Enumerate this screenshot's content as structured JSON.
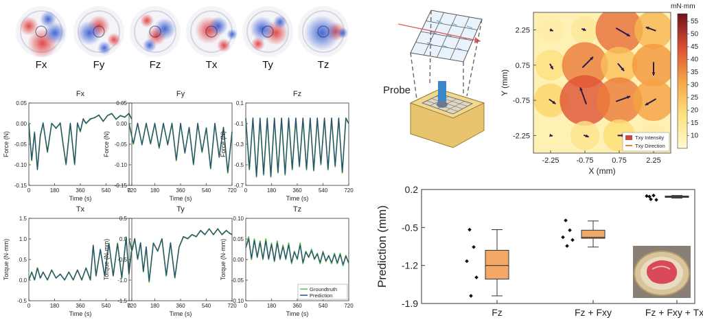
{
  "heatmaps": {
    "labels": [
      "Fx",
      "Fy",
      "Fz",
      "Tx",
      "Ty",
      "Tz"
    ]
  },
  "axis_label_text": {
    "time": "Time (s)",
    "force": "Force (N)",
    "torque": "Torque (N·mm)"
  },
  "legend": {
    "groundtruth": "Groundtruth",
    "prediction": "Prediction"
  },
  "colors": {
    "groundtruth": "#5cbf4a",
    "prediction": "#2c4a7a",
    "box_fill": "#f3a868",
    "heat_red": "#e04040",
    "heat_blue": "#3a5fd0",
    "probe_arrow": "#e05a5a",
    "flow_arrow": "#2c1a4a"
  },
  "schematic": {
    "probe_label": "Probe"
  },
  "chart_data": [
    {
      "type": "line",
      "title": "Fx",
      "xlabel": "Time (s)",
      "ylabel": "Force (N)",
      "xlim": [
        0,
        720
      ],
      "ylim": [
        -0.15,
        0.05
      ],
      "xticks": [
        0,
        180,
        360,
        540,
        720
      ],
      "yticks": [
        -0.15,
        -0.1,
        -0.05,
        0.0,
        0.05
      ],
      "xtick_labels": [
        "0",
        "180",
        "360",
        "540",
        "720"
      ],
      "ytick_labels": [
        "-0.15",
        "-0.10",
        "-0.05",
        "0.00",
        "0.05"
      ],
      "x": [
        0,
        20,
        40,
        60,
        80,
        100,
        130,
        160,
        190,
        220,
        240,
        260,
        290,
        320,
        340,
        360,
        380,
        400,
        430,
        460,
        490,
        520,
        550,
        580,
        610,
        640,
        670,
        700,
        720
      ],
      "series": [
        {
          "values": [
            0.0,
            -0.09,
            -0.02,
            -0.11,
            -0.03,
            0.0,
            -0.07,
            0.0,
            -0.01,
            0.0,
            -0.05,
            -0.1,
            0.0,
            -0.1,
            0.0,
            -0.02,
            0.01,
            0.0,
            0.01,
            0.015,
            0.02,
            0.005,
            0.02,
            0.025,
            0.01,
            0.02,
            0.015,
            0.025,
            0.01
          ]
        },
        {
          "values": [
            0.0,
            -0.088,
            -0.022,
            -0.112,
            -0.028,
            0.002,
            -0.068,
            0.001,
            -0.012,
            0.002,
            -0.052,
            -0.098,
            0.001,
            -0.098,
            0.002,
            -0.018,
            0.012,
            0.001,
            0.012,
            0.014,
            0.021,
            0.006,
            0.019,
            0.024,
            0.011,
            0.019,
            0.016,
            0.024,
            0.011
          ]
        }
      ]
    },
    {
      "type": "line",
      "title": "Fy",
      "xlabel": "Time (s)",
      "ylabel": "Force (N)",
      "xlim": [
        0,
        720
      ],
      "ylim": [
        -0.15,
        0.05
      ],
      "xticks": [
        0,
        180,
        360,
        540,
        720
      ],
      "yticks": [
        -0.15,
        -0.1,
        -0.05,
        0.0,
        0.05
      ],
      "xtick_labels": [
        "0",
        "180",
        "360",
        "540",
        "720"
      ],
      "ytick_labels": [
        "-0.15",
        "-0.10",
        "-0.05",
        "0.00",
        "0.05"
      ],
      "x": [
        0,
        30,
        60,
        90,
        120,
        150,
        180,
        210,
        240,
        270,
        300,
        330,
        360,
        390,
        420,
        450,
        480,
        510,
        540,
        570,
        600,
        630,
        660,
        690,
        720
      ],
      "series": [
        {
          "values": [
            0.0,
            -0.05,
            0.0,
            -0.05,
            0.0,
            -0.05,
            0.0,
            -0.06,
            0.0,
            -0.05,
            0.0,
            -0.09,
            0.0,
            -0.07,
            -0.01,
            -0.1,
            0.0,
            -0.07,
            -0.01,
            -0.11,
            0.0,
            -0.08,
            -0.01,
            -0.12,
            -0.02
          ]
        },
        {
          "values": [
            0.0,
            -0.048,
            0.001,
            -0.052,
            0.001,
            -0.048,
            0.001,
            -0.058,
            0.001,
            -0.052,
            0.001,
            -0.088,
            0.001,
            -0.072,
            -0.009,
            -0.098,
            0.001,
            -0.068,
            -0.011,
            -0.108,
            0.001,
            -0.082,
            -0.009,
            -0.118,
            -0.019
          ]
        }
      ]
    },
    {
      "type": "line",
      "title": "Fz",
      "xlabel": "Time (s)",
      "ylabel": "Force (N)",
      "xlim": [
        0,
        720
      ],
      "ylim": [
        -0.7,
        0.1
      ],
      "xticks": [
        0,
        180,
        360,
        540,
        720
      ],
      "yticks": [
        -0.7,
        -0.5,
        -0.3,
        -0.1,
        0.1
      ],
      "xtick_labels": [
        "0",
        "180",
        "360",
        "540",
        "720"
      ],
      "ytick_labels": [
        "-0.7",
        "-0.5",
        "-0.3",
        "-0.1",
        "0.1"
      ],
      "x": [
        0,
        25,
        50,
        75,
        100,
        125,
        150,
        175,
        200,
        225,
        250,
        275,
        300,
        325,
        350,
        375,
        400,
        425,
        450,
        475,
        500,
        525,
        550,
        575,
        600,
        625,
        650,
        675,
        700,
        720
      ],
      "series": [
        {
          "values": [
            -0.05,
            -0.55,
            -0.05,
            -0.62,
            -0.05,
            -0.6,
            -0.05,
            -0.62,
            -0.05,
            -0.58,
            -0.05,
            -0.6,
            -0.05,
            -0.55,
            -0.05,
            -0.52,
            -0.05,
            -0.55,
            -0.05,
            -0.56,
            -0.05,
            -0.5,
            -0.05,
            -0.55,
            -0.05,
            -0.52,
            -0.05,
            -0.58,
            -0.05,
            -0.1
          ]
        },
        {
          "values": [
            -0.045,
            -0.54,
            -0.045,
            -0.61,
            -0.045,
            -0.59,
            -0.045,
            -0.61,
            -0.045,
            -0.57,
            -0.045,
            -0.59,
            -0.045,
            -0.54,
            -0.045,
            -0.51,
            -0.045,
            -0.54,
            -0.045,
            -0.55,
            -0.045,
            -0.49,
            -0.045,
            -0.54,
            -0.045,
            -0.51,
            -0.045,
            -0.57,
            -0.045,
            -0.1
          ]
        }
      ]
    },
    {
      "type": "line",
      "title": "Tx",
      "xlabel": "Time (s)",
      "ylabel": "Torque (N·mm)",
      "xlim": [
        0,
        720
      ],
      "ylim": [
        -0.5,
        1.5
      ],
      "xticks": [
        0,
        180,
        360,
        540,
        720
      ],
      "yticks": [
        -0.5,
        0.0,
        0.5,
        1.0,
        1.5
      ],
      "xtick_labels": [
        "0",
        "180",
        "360",
        "540",
        "720"
      ],
      "ytick_labels": [
        "-0.5",
        "0.0",
        "0.5",
        "1.0",
        "1.5"
      ],
      "x": [
        0,
        20,
        40,
        60,
        80,
        100,
        130,
        160,
        190,
        220,
        250,
        280,
        310,
        340,
        370,
        400,
        430,
        450,
        470,
        500,
        530,
        560,
        590,
        620,
        650,
        680,
        700,
        720
      ],
      "series": [
        {
          "values": [
            0.0,
            0.2,
            0.0,
            0.3,
            0.05,
            0.2,
            0.0,
            0.25,
            0.05,
            0.15,
            0.0,
            0.2,
            0.0,
            0.25,
            0.0,
            0.3,
            0.0,
            0.85,
            0.1,
            0.75,
            0.1,
            0.9,
            0.1,
            0.9,
            0.05,
            1.05,
            0.15,
            0.8
          ]
        },
        {
          "values": [
            0.0,
            0.19,
            0.01,
            0.29,
            0.05,
            0.19,
            0.01,
            0.24,
            0.05,
            0.14,
            0.01,
            0.19,
            0.01,
            0.24,
            0.01,
            0.29,
            0.01,
            0.84,
            0.11,
            0.74,
            0.11,
            0.88,
            0.11,
            0.88,
            0.06,
            1.02,
            0.15,
            0.78
          ]
        }
      ]
    },
    {
      "type": "line",
      "title": "Ty",
      "xlabel": "Time (s)",
      "ylabel": "Torque (N·mm)",
      "xlim": [
        0,
        720
      ],
      "ylim": [
        -1.5,
        0.5
      ],
      "xticks": [
        0,
        180,
        360,
        540,
        720
      ],
      "yticks": [
        -1.5,
        -1.0,
        -0.5,
        0.0,
        0.5
      ],
      "xtick_labels": [
        "0",
        "180",
        "360",
        "540",
        "720"
      ],
      "ytick_labels": [
        "-1.5",
        "-1.0",
        "-0.5",
        "0.0",
        "0.5"
      ],
      "x": [
        0,
        20,
        40,
        60,
        80,
        100,
        120,
        140,
        170,
        200,
        230,
        260,
        290,
        320,
        350,
        380,
        410,
        440,
        470,
        500,
        530,
        560,
        590,
        620,
        650,
        680,
        700,
        720
      ],
      "series": [
        {
          "values": [
            0.0,
            -0.3,
            0.0,
            -0.5,
            -0.1,
            -0.8,
            -0.2,
            -1.05,
            -0.1,
            -0.3,
            0.0,
            -0.9,
            -0.1,
            -0.95,
            -0.2,
            0.05,
            0.0,
            0.1,
            0.05,
            0.2,
            0.1,
            0.25,
            0.1,
            0.25,
            0.1,
            0.2,
            0.15,
            0.1
          ]
        },
        {
          "values": [
            0.0,
            -0.28,
            0.01,
            -0.48,
            -0.09,
            -0.78,
            -0.19,
            -1.02,
            -0.1,
            -0.29,
            0.01,
            -0.88,
            -0.09,
            -0.93,
            -0.19,
            0.06,
            0.01,
            0.11,
            0.06,
            0.21,
            0.11,
            0.24,
            0.11,
            0.24,
            0.11,
            0.21,
            0.14,
            0.11
          ]
        }
      ]
    },
    {
      "type": "line",
      "title": "Tz",
      "xlabel": "Time (s)",
      "ylabel": "Torque (N·mm)",
      "xlim": [
        0,
        720
      ],
      "ylim": [
        -0.1,
        0.1
      ],
      "xticks": [
        0,
        180,
        360,
        540,
        720
      ],
      "yticks": [
        -0.1,
        -0.05,
        0.0,
        0.05,
        0.1
      ],
      "xtick_labels": [
        "0",
        "180",
        "360",
        "540",
        "720"
      ],
      "ytick_labels": [
        "-0.10",
        "-0.05",
        "0.00",
        "0.05",
        "0.10"
      ],
      "legend": [
        "Groundtruth",
        "Prediction"
      ],
      "x": [
        0,
        20,
        40,
        60,
        80,
        100,
        120,
        140,
        160,
        180,
        200,
        220,
        240,
        260,
        280,
        300,
        320,
        340,
        360,
        380,
        400,
        420,
        440,
        460,
        480,
        500,
        520,
        540,
        560,
        580,
        600,
        620,
        640,
        660,
        680,
        700,
        720
      ],
      "series": [
        {
          "name": "Groundtruth",
          "values": [
            0.03,
            0.055,
            0.0,
            0.05,
            0.005,
            0.045,
            0.0,
            0.05,
            0.0,
            0.04,
            -0.005,
            0.045,
            0.0,
            0.035,
            0.0,
            0.04,
            -0.01,
            0.02,
            0.0,
            0.04,
            -0.01,
            0.02,
            0.005,
            0.025,
            0.0,
            0.015,
            -0.01,
            0.02,
            -0.005,
            0.01,
            -0.01,
            0.015,
            -0.01,
            0.015,
            -0.015,
            0.01,
            -0.01
          ]
        },
        {
          "name": "Prediction",
          "values": [
            0.028,
            0.05,
            0.003,
            0.046,
            0.006,
            0.041,
            0.002,
            0.045,
            0.002,
            0.036,
            -0.003,
            0.04,
            0.002,
            0.031,
            0.002,
            0.035,
            -0.007,
            0.018,
            0.002,
            0.035,
            -0.007,
            0.018,
            0.006,
            0.021,
            0.002,
            0.013,
            -0.007,
            0.017,
            -0.003,
            0.009,
            -0.007,
            0.012,
            -0.008,
            0.012,
            -0.012,
            0.008,
            -0.008
          ]
        }
      ]
    },
    {
      "type": "heatmap",
      "xlabel": "X (mm)",
      "ylabel": "Y (mm)",
      "xlim": [
        -3.0,
        3.0
      ],
      "ylim": [
        -3.0,
        3.0
      ],
      "xticks": [
        -2.25,
        -0.75,
        0.75,
        2.25
      ],
      "yticks": [
        -2.25,
        -0.75,
        0.75,
        2.25
      ],
      "xtick_labels": [
        "-2.25",
        "-0.75",
        "0.75",
        "2.25"
      ],
      "ytick_labels": [
        "-2.25",
        "-0.75",
        "0.75",
        "2.25"
      ],
      "colorbar_title": "mN·mm",
      "colorbar_ticks": [
        10,
        15,
        20,
        25,
        30,
        35,
        40,
        45,
        50,
        55
      ],
      "colorbar_tick_labels": [
        "10",
        "15",
        "20",
        "25",
        "30",
        "35",
        "40",
        "45",
        "50",
        "55"
      ],
      "colorbar_range": [
        5,
        58
      ],
      "legend": [
        "Txy Intensity",
        "Txy Direction"
      ],
      "grid_x": [
        -2.25,
        -0.75,
        0.75,
        2.25
      ],
      "grid_y": [
        2.25,
        0.75,
        -0.75,
        -2.25
      ],
      "intensity": [
        [
          12,
          14,
          40,
          28
        ],
        [
          18,
          38,
          26,
          34
        ],
        [
          22,
          44,
          38,
          32
        ],
        [
          10,
          16,
          20,
          12
        ]
      ],
      "direction_deg": [
        [
          -20,
          160,
          -30,
          160
        ],
        [
          -60,
          45,
          -50,
          -90
        ],
        [
          -35,
          110,
          20,
          -150
        ],
        [
          -10,
          -20,
          0,
          170
        ]
      ]
    },
    {
      "type": "box",
      "ylabel": "Prediction (mm)",
      "ylim": [
        -1.9,
        0.2
      ],
      "yticks": [
        -1.9,
        -1.2,
        -0.5,
        0.2
      ],
      "ytick_labels": [
        "-1.9",
        "-1.2",
        "-0.5",
        "0.2"
      ],
      "categories": [
        "Fz",
        "Fz + Fxy",
        "Fz + Fxy + Txy"
      ],
      "boxes": [
        {
          "min": -1.76,
          "q1": -1.45,
          "median": -1.2,
          "q3": -0.92,
          "max": -0.54
        },
        {
          "min": -0.86,
          "q1": -0.7,
          "median": -0.68,
          "q3": -0.55,
          "max": -0.38
        },
        {
          "min": 0.04,
          "q1": 0.06,
          "median": 0.07,
          "q3": 0.08,
          "max": 0.09
        }
      ],
      "points": [
        [
          -0.54,
          -0.86,
          -1.12,
          -1.42,
          -1.76
        ],
        [
          -0.37,
          -0.55,
          -0.68,
          -0.73,
          -0.84
        ],
        [
          0.07,
          0.09,
          0.08,
          0.01,
          0.02
        ]
      ]
    }
  ]
}
